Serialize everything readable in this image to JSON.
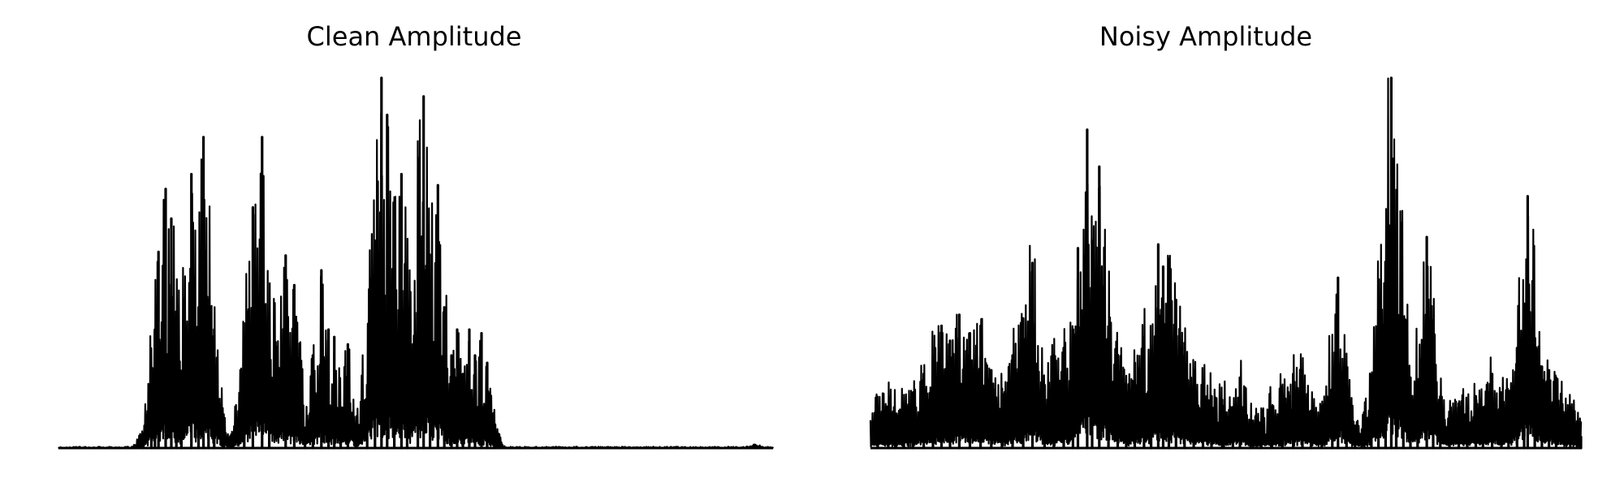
{
  "chart_data": [
    {
      "type": "line",
      "title": "Clean Amplitude",
      "xlabel": "",
      "ylabel": "",
      "grid": false,
      "axes_visible": false,
      "line_color": "#000000",
      "xlim": [
        0,
        1
      ],
      "ylim": [
        0,
        1
      ],
      "peaks": [
        {
          "x": 0.118,
          "y": 0.008
        },
        {
          "x": 0.13,
          "y": 0.16
        },
        {
          "x": 0.135,
          "y": 0.32
        },
        {
          "x": 0.14,
          "y": 0.53
        },
        {
          "x": 0.15,
          "y": 0.7
        },
        {
          "x": 0.158,
          "y": 0.62
        },
        {
          "x": 0.165,
          "y": 0.18
        },
        {
          "x": 0.172,
          "y": 0.13
        },
        {
          "x": 0.186,
          "y": 0.74
        },
        {
          "x": 0.196,
          "y": 0.38
        },
        {
          "x": 0.203,
          "y": 0.84
        },
        {
          "x": 0.21,
          "y": 0.4
        },
        {
          "x": 0.218,
          "y": 0.32
        },
        {
          "x": 0.23,
          "y": 0.03
        },
        {
          "x": 0.26,
          "y": 0.3
        },
        {
          "x": 0.272,
          "y": 0.65
        },
        {
          "x": 0.285,
          "y": 0.84
        },
        {
          "x": 0.295,
          "y": 0.27
        },
        {
          "x": 0.318,
          "y": 0.52
        },
        {
          "x": 0.33,
          "y": 0.44
        },
        {
          "x": 0.345,
          "y": 0.04
        },
        {
          "x": 0.356,
          "y": 0.25
        },
        {
          "x": 0.368,
          "y": 0.48
        },
        {
          "x": 0.378,
          "y": 0.32
        },
        {
          "x": 0.386,
          "y": 0.3
        },
        {
          "x": 0.395,
          "y": 0.1
        },
        {
          "x": 0.405,
          "y": 0.28
        },
        {
          "x": 0.432,
          "y": 0.17
        },
        {
          "x": 0.443,
          "y": 0.56
        },
        {
          "x": 0.452,
          "y": 1.0
        },
        {
          "x": 0.46,
          "y": 0.9
        },
        {
          "x": 0.47,
          "y": 0.38
        },
        {
          "x": 0.48,
          "y": 0.74
        },
        {
          "x": 0.488,
          "y": 0.3
        },
        {
          "x": 0.503,
          "y": 0.3
        },
        {
          "x": 0.511,
          "y": 0.95
        },
        {
          "x": 0.52,
          "y": 0.45
        },
        {
          "x": 0.531,
          "y": 0.71
        },
        {
          "x": 0.54,
          "y": 0.38
        },
        {
          "x": 0.55,
          "y": 0.25
        },
        {
          "x": 0.558,
          "y": 0.32
        },
        {
          "x": 0.566,
          "y": 0.2
        },
        {
          "x": 0.575,
          "y": 0.32
        },
        {
          "x": 0.583,
          "y": 0.25
        },
        {
          "x": 0.592,
          "y": 0.31
        },
        {
          "x": 0.6,
          "y": 0.23
        },
        {
          "x": 0.61,
          "y": 0.03
        },
        {
          "x": 0.975,
          "y": 0.008
        }
      ]
    },
    {
      "type": "line",
      "title": "Noisy Amplitude",
      "xlabel": "",
      "ylabel": "",
      "grid": false,
      "axes_visible": false,
      "line_color": "#000000",
      "xlim": [
        0,
        1
      ],
      "ylim": [
        0,
        1
      ],
      "peaks": [
        {
          "x": 0.01,
          "y": 0.09
        },
        {
          "x": 0.025,
          "y": 0.11
        },
        {
          "x": 0.035,
          "y": 0.07
        },
        {
          "x": 0.047,
          "y": 0.1
        },
        {
          "x": 0.06,
          "y": 0.15
        },
        {
          "x": 0.075,
          "y": 0.2
        },
        {
          "x": 0.088,
          "y": 0.25
        },
        {
          "x": 0.1,
          "y": 0.33
        },
        {
          "x": 0.112,
          "y": 0.29
        },
        {
          "x": 0.125,
          "y": 0.36
        },
        {
          "x": 0.14,
          "y": 0.31
        },
        {
          "x": 0.155,
          "y": 0.33
        },
        {
          "x": 0.17,
          "y": 0.21
        },
        {
          "x": 0.185,
          "y": 0.16
        },
        {
          "x": 0.2,
          "y": 0.25
        },
        {
          "x": 0.215,
          "y": 0.35
        },
        {
          "x": 0.228,
          "y": 0.5
        },
        {
          "x": 0.245,
          "y": 0.15
        },
        {
          "x": 0.258,
          "y": 0.25
        },
        {
          "x": 0.272,
          "y": 0.27
        },
        {
          "x": 0.285,
          "y": 0.32
        },
        {
          "x": 0.292,
          "y": 0.54
        },
        {
          "x": 0.305,
          "y": 0.86
        },
        {
          "x": 0.312,
          "y": 0.56
        },
        {
          "x": 0.322,
          "y": 0.76
        },
        {
          "x": 0.335,
          "y": 0.19
        },
        {
          "x": 0.348,
          "y": 0.24
        },
        {
          "x": 0.36,
          "y": 0.14
        },
        {
          "x": 0.372,
          "y": 0.23
        },
        {
          "x": 0.385,
          "y": 0.3
        },
        {
          "x": 0.395,
          "y": 0.25
        },
        {
          "x": 0.405,
          "y": 0.55
        },
        {
          "x": 0.412,
          "y": 0.49
        },
        {
          "x": 0.42,
          "y": 0.51
        },
        {
          "x": 0.43,
          "y": 0.4
        },
        {
          "x": 0.442,
          "y": 0.25
        },
        {
          "x": 0.455,
          "y": 0.21
        },
        {
          "x": 0.468,
          "y": 0.17
        },
        {
          "x": 0.48,
          "y": 0.14
        },
        {
          "x": 0.495,
          "y": 0.13
        },
        {
          "x": 0.51,
          "y": 0.11
        },
        {
          "x": 0.52,
          "y": 0.19
        },
        {
          "x": 0.535,
          "y": 0.05
        },
        {
          "x": 0.55,
          "y": 0.07
        },
        {
          "x": 0.565,
          "y": 0.11
        },
        {
          "x": 0.58,
          "y": 0.14
        },
        {
          "x": 0.595,
          "y": 0.2
        },
        {
          "x": 0.608,
          "y": 0.21
        },
        {
          "x": 0.62,
          "y": 0.1
        },
        {
          "x": 0.635,
          "y": 0.06
        },
        {
          "x": 0.65,
          "y": 0.11
        },
        {
          "x": 0.658,
          "y": 0.46
        },
        {
          "x": 0.67,
          "y": 0.18
        },
        {
          "x": 0.682,
          "y": 0.06
        },
        {
          "x": 0.695,
          "y": 0.04
        },
        {
          "x": 0.705,
          "y": 0.1
        },
        {
          "x": 0.715,
          "y": 0.32
        },
        {
          "x": 0.725,
          "y": 0.3
        },
        {
          "x": 0.733,
          "y": 1.0
        },
        {
          "x": 0.74,
          "y": 0.25
        },
        {
          "x": 0.75,
          "y": 0.22
        },
        {
          "x": 0.76,
          "y": 0.19
        },
        {
          "x": 0.77,
          "y": 0.17
        },
        {
          "x": 0.783,
          "y": 0.57
        },
        {
          "x": 0.792,
          "y": 0.14
        },
        {
          "x": 0.802,
          "y": 0.11
        },
        {
          "x": 0.815,
          "y": 0.08
        },
        {
          "x": 0.828,
          "y": 0.12
        },
        {
          "x": 0.84,
          "y": 0.08
        },
        {
          "x": 0.852,
          "y": 0.14
        },
        {
          "x": 0.862,
          "y": 0.11
        },
        {
          "x": 0.875,
          "y": 0.2
        },
        {
          "x": 0.888,
          "y": 0.15
        },
        {
          "x": 0.898,
          "y": 0.14
        },
        {
          "x": 0.91,
          "y": 0.27
        },
        {
          "x": 0.92,
          "y": 0.39
        },
        {
          "x": 0.925,
          "y": 0.68
        },
        {
          "x": 0.935,
          "y": 0.25
        },
        {
          "x": 0.945,
          "y": 0.22
        },
        {
          "x": 0.955,
          "y": 0.21
        },
        {
          "x": 0.965,
          "y": 0.19
        },
        {
          "x": 0.985,
          "y": 0.08
        },
        {
          "x": 1.0,
          "y": 0.03
        }
      ]
    }
  ]
}
